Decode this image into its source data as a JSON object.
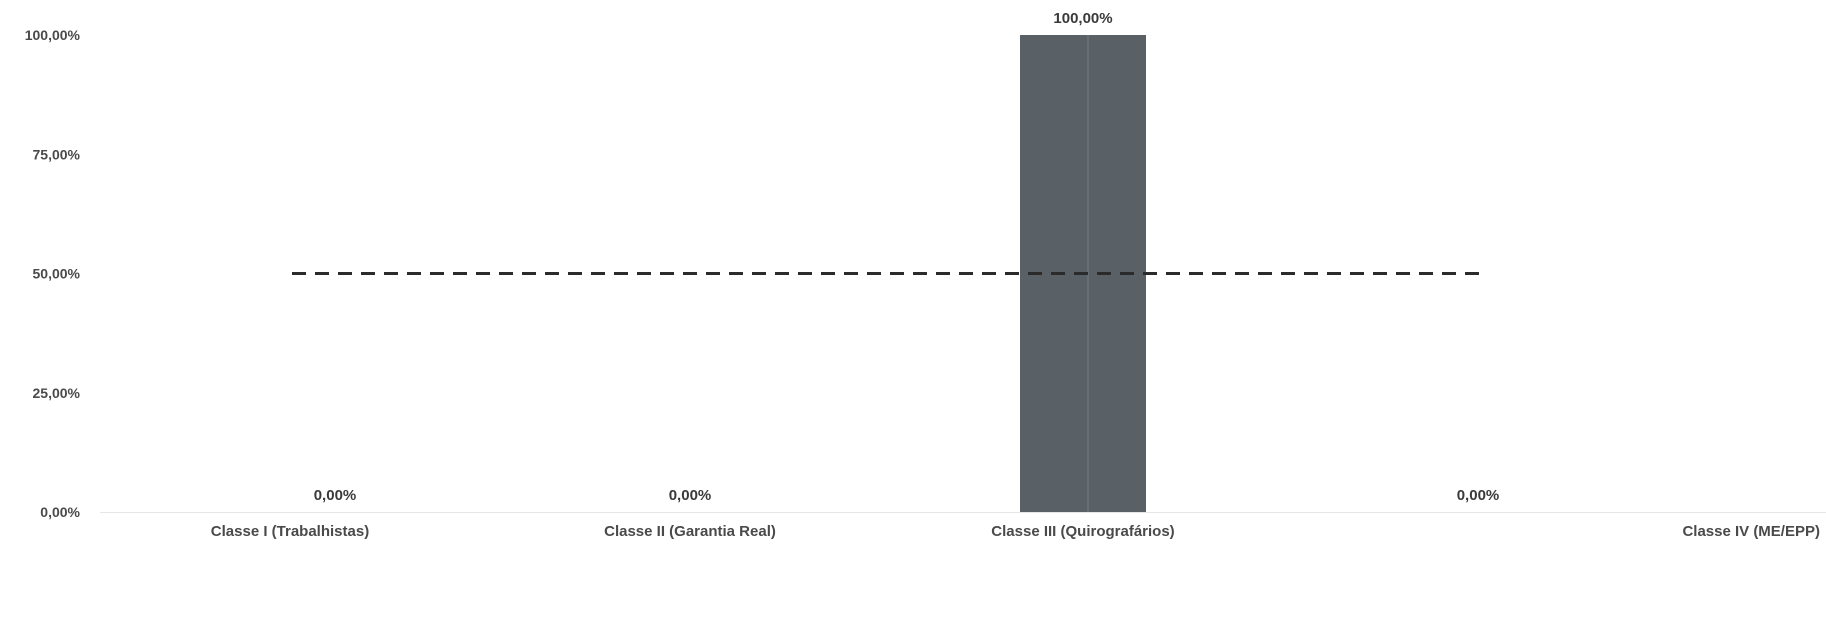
{
  "chart_data": {
    "type": "bar",
    "categories": [
      "Classe I (Trabalhistas)",
      "Classe II (Garantia Real)",
      "Classe III (Quirografários)",
      "Classe IV (ME/EPP)"
    ],
    "values": [
      0,
      0,
      100,
      0
    ],
    "data_labels": [
      "0,00%",
      "0,00%",
      "100,00%",
      "0,00%"
    ],
    "y_ticks": [
      {
        "value": 0,
        "label": "0,00%"
      },
      {
        "value": 25,
        "label": "25,00%"
      },
      {
        "value": 50,
        "label": "50,00%"
      },
      {
        "value": 75,
        "label": "75,00%"
      },
      {
        "value": 100,
        "label": "100,00%"
      }
    ],
    "ylim": [
      0,
      100
    ],
    "reference_line": {
      "value": 50,
      "style": "dashed"
    },
    "title": "",
    "xlabel": "",
    "ylabel": "",
    "grid": false,
    "colors": {
      "bar": "#5a6166",
      "reference_line": "#2b2b2b",
      "text": "#4a4a4a"
    }
  }
}
